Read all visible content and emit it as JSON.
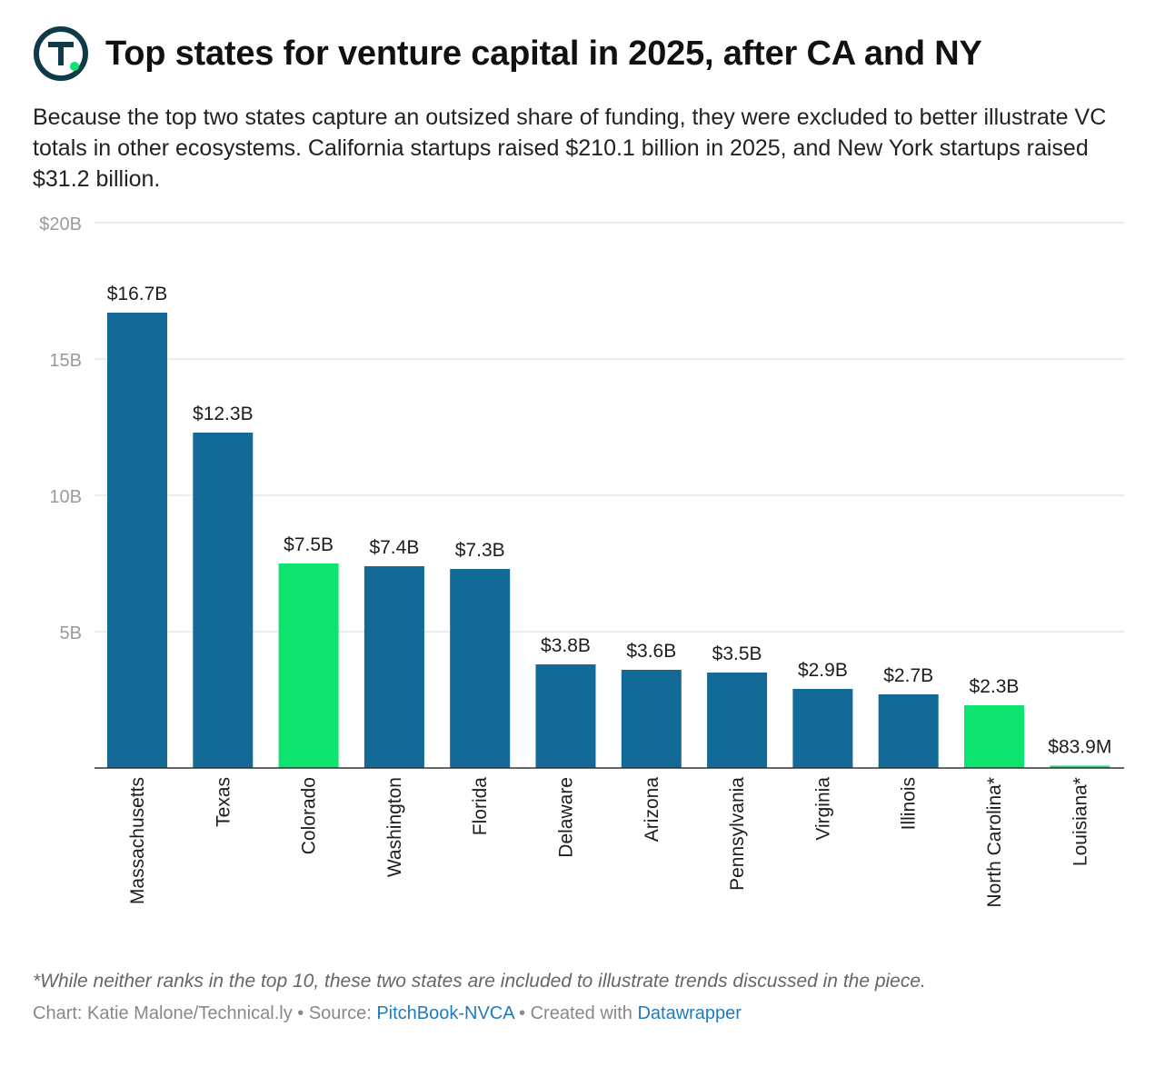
{
  "header": {
    "title": "Top states for venture capital in 2025, after CA and NY",
    "description": "Because the top two states capture an outsized share of funding, they were excluded to better illustrate VC totals in other ecosystems. California startups raised $210.1 billion in 2025, and New York startups raised $31.2 billion.",
    "logo_letter": "T"
  },
  "chart_data": {
    "type": "bar",
    "title": "Top states for venture capital in 2025, after CA and NY",
    "xlabel": "",
    "ylabel": "",
    "ylim": [
      0,
      20
    ],
    "unit": "billion USD",
    "y_ticks": [
      {
        "value": 20,
        "label": "$20B"
      },
      {
        "value": 15,
        "label": "15B"
      },
      {
        "value": 10,
        "label": "10B"
      },
      {
        "value": 5,
        "label": "5B"
      }
    ],
    "grid": true,
    "categories": [
      "Massachusetts",
      "Texas",
      "Colorado",
      "Washington",
      "Florida",
      "Delaware",
      "Arizona",
      "Pennsylvania",
      "Virginia",
      "Illinois",
      "North Carolina*",
      "Louisiana*"
    ],
    "values": [
      16.7,
      12.3,
      7.5,
      7.4,
      7.3,
      3.8,
      3.6,
      3.5,
      2.9,
      2.7,
      2.3,
      0.0839
    ],
    "data_labels": [
      "$16.7B",
      "$12.3B",
      "$7.5B",
      "$7.4B",
      "$7.3B",
      "$3.8B",
      "$3.6B",
      "$3.5B",
      "$2.9B",
      "$2.7B",
      "$2.3B",
      "$83.9M"
    ],
    "highlight": [
      false,
      false,
      true,
      false,
      false,
      false,
      false,
      false,
      false,
      false,
      true,
      true
    ],
    "colors": {
      "default": "#136a97",
      "highlight": "#0de36f",
      "grid": "#e2e2e2",
      "axis": "#333333",
      "tick_text": "#9a9a9a",
      "label_text": "#1d1d1d"
    }
  },
  "footer": {
    "note": "*While neither ranks in the top 10, these two states are included to illustrate trends discussed in the piece.",
    "chart_prefix": "Chart: Katie Malone/Technical.ly",
    "separator": " • ",
    "source_prefix": "Source: ",
    "source_name": "PitchBook-NVCA",
    "created_prefix": "Created with ",
    "created_tool": "Datawrapper"
  }
}
